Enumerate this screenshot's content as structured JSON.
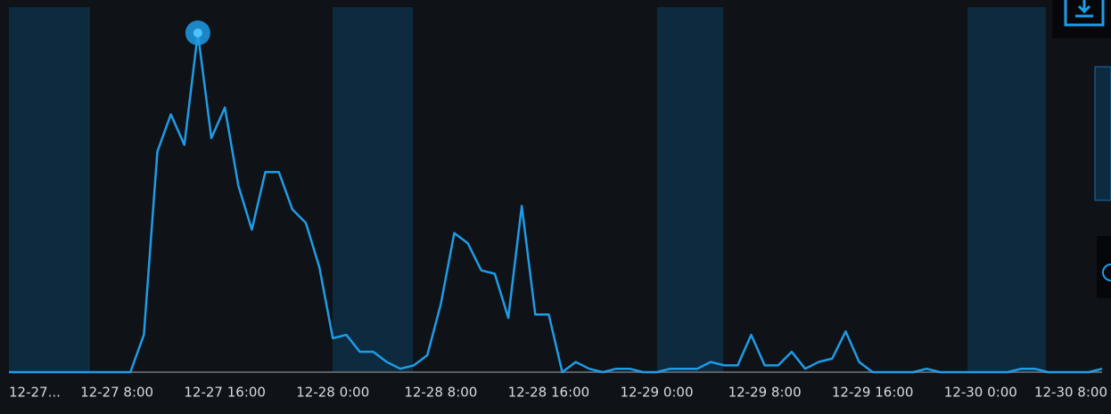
{
  "chart_data": {
    "type": "line",
    "categories": [
      "12-27...",
      null,
      null,
      null,
      null,
      null,
      null,
      null,
      "12-27 8:00",
      null,
      null,
      null,
      null,
      null,
      null,
      null,
      "12-27 16:00",
      null,
      null,
      null,
      null,
      null,
      null,
      null,
      "12-28 0:00",
      null,
      null,
      null,
      null,
      null,
      null,
      null,
      "12-28 8:00",
      null,
      null,
      null,
      null,
      null,
      null,
      null,
      "12-28 16:00",
      null,
      null,
      null,
      null,
      null,
      null,
      null,
      "12-29 0:00",
      null,
      null,
      null,
      null,
      null,
      null,
      null,
      "12-29 8:00",
      null,
      null,
      null,
      null,
      null,
      null,
      null,
      "12-29 16:00",
      null,
      null,
      null,
      null,
      null,
      null,
      null,
      "12-30 0:00",
      null,
      null,
      null,
      null,
      null,
      null,
      null,
      "12-30 8:00",
      null
    ],
    "series": [
      {
        "color": "#1e9ce6",
        "values": [
          0,
          0,
          0,
          0,
          0,
          0,
          0,
          0,
          0,
          0,
          11,
          65,
          76,
          67,
          100,
          69,
          78,
          55,
          42,
          59,
          59,
          48,
          44,
          31,
          10,
          11,
          6,
          6,
          3,
          1,
          2,
          5,
          20,
          41,
          38,
          30,
          29,
          16,
          49,
          17,
          17,
          0,
          3,
          1,
          0,
          1,
          1,
          0,
          0,
          1,
          1,
          1,
          3,
          2,
          2,
          11,
          2,
          2,
          6,
          1,
          3,
          4,
          12,
          3,
          0,
          0,
          0,
          0,
          1,
          0,
          0,
          0,
          0,
          0,
          0,
          1,
          1,
          0,
          0,
          0,
          0,
          1
        ]
      }
    ],
    "ylim": [
      0,
      100
    ]
  }
}
